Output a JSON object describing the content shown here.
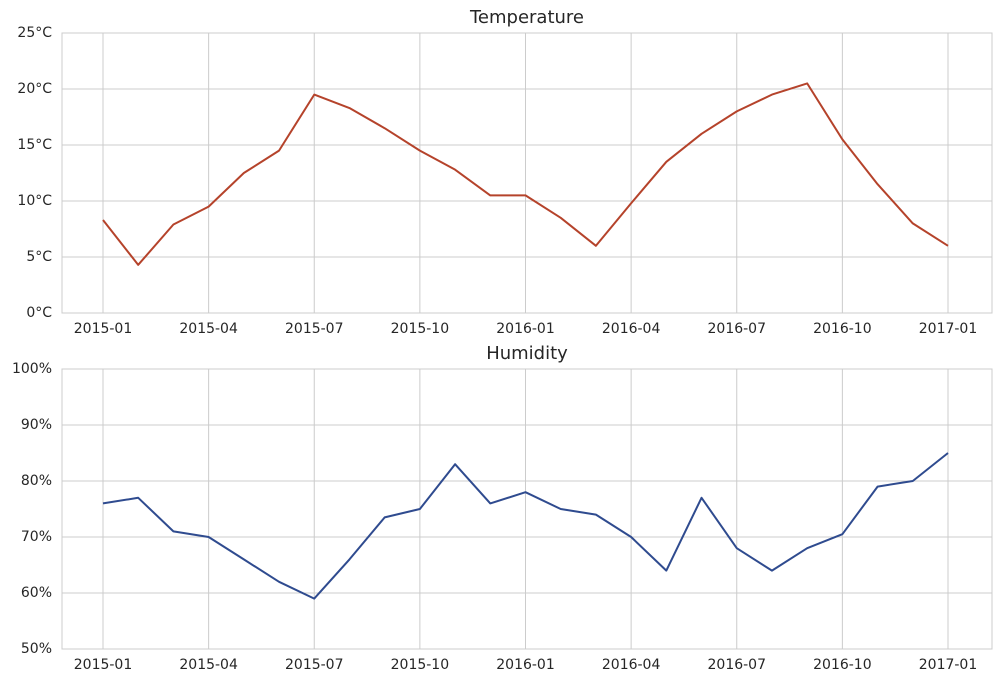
{
  "chart_data": [
    {
      "type": "line",
      "title": "Temperature",
      "x": [
        "2015-01",
        "2015-02",
        "2015-03",
        "2015-04",
        "2015-05",
        "2015-06",
        "2015-07",
        "2015-08",
        "2015-09",
        "2015-10",
        "2015-11",
        "2015-12",
        "2016-01",
        "2016-02",
        "2016-03",
        "2016-04",
        "2016-05",
        "2016-06",
        "2016-07",
        "2016-08",
        "2016-09",
        "2016-10",
        "2016-11",
        "2016-12",
        "2017-01"
      ],
      "xticks": [
        "2015-01",
        "2015-04",
        "2015-07",
        "2015-10",
        "2016-01",
        "2016-04",
        "2016-07",
        "2016-10",
        "2017-01"
      ],
      "values": [
        8.3,
        4.3,
        7.9,
        9.5,
        12.5,
        14.5,
        19.5,
        18.3,
        16.5,
        14.5,
        12.8,
        10.5,
        10.5,
        8.5,
        6.0,
        9.8,
        13.5,
        16.0,
        18.0,
        19.5,
        20.5,
        15.5,
        11.5,
        8.0,
        6.0
      ],
      "color": "#b5432b",
      "ylim": [
        0,
        25
      ],
      "yticks": [
        {
          "value": 0,
          "label": "0°C"
        },
        {
          "value": 5,
          "label": "5°C"
        },
        {
          "value": 10,
          "label": "10°C"
        },
        {
          "value": 15,
          "label": "15°C"
        },
        {
          "value": 20,
          "label": "20°C"
        },
        {
          "value": 25,
          "label": "25°C"
        }
      ],
      "grid": true
    },
    {
      "type": "line",
      "title": "Humidity",
      "x": [
        "2015-01",
        "2015-02",
        "2015-03",
        "2015-04",
        "2015-05",
        "2015-06",
        "2015-07",
        "2015-08",
        "2015-09",
        "2015-10",
        "2015-11",
        "2015-12",
        "2016-01",
        "2016-02",
        "2016-03",
        "2016-04",
        "2016-05",
        "2016-06",
        "2016-07",
        "2016-08",
        "2016-09",
        "2016-10",
        "2016-11",
        "2016-12",
        "2017-01"
      ],
      "xticks": [
        "2015-01",
        "2015-04",
        "2015-07",
        "2015-10",
        "2016-01",
        "2016-04",
        "2016-07",
        "2016-10",
        "2017-01"
      ],
      "values": [
        76,
        77,
        71,
        70,
        66,
        62,
        59,
        66,
        73.5,
        75,
        83,
        76,
        78,
        75,
        74,
        70,
        64,
        77,
        68,
        64,
        68,
        70.5,
        79,
        80,
        85
      ],
      "color": "#2f4b8f",
      "ylim": [
        50,
        100
      ],
      "yticks": [
        {
          "value": 50,
          "label": "50%"
        },
        {
          "value": 60,
          "label": "60%"
        },
        {
          "value": 70,
          "label": "70%"
        },
        {
          "value": 80,
          "label": "80%"
        },
        {
          "value": 90,
          "label": "90%"
        },
        {
          "value": 100,
          "label": "100%"
        }
      ],
      "grid": true
    }
  ]
}
